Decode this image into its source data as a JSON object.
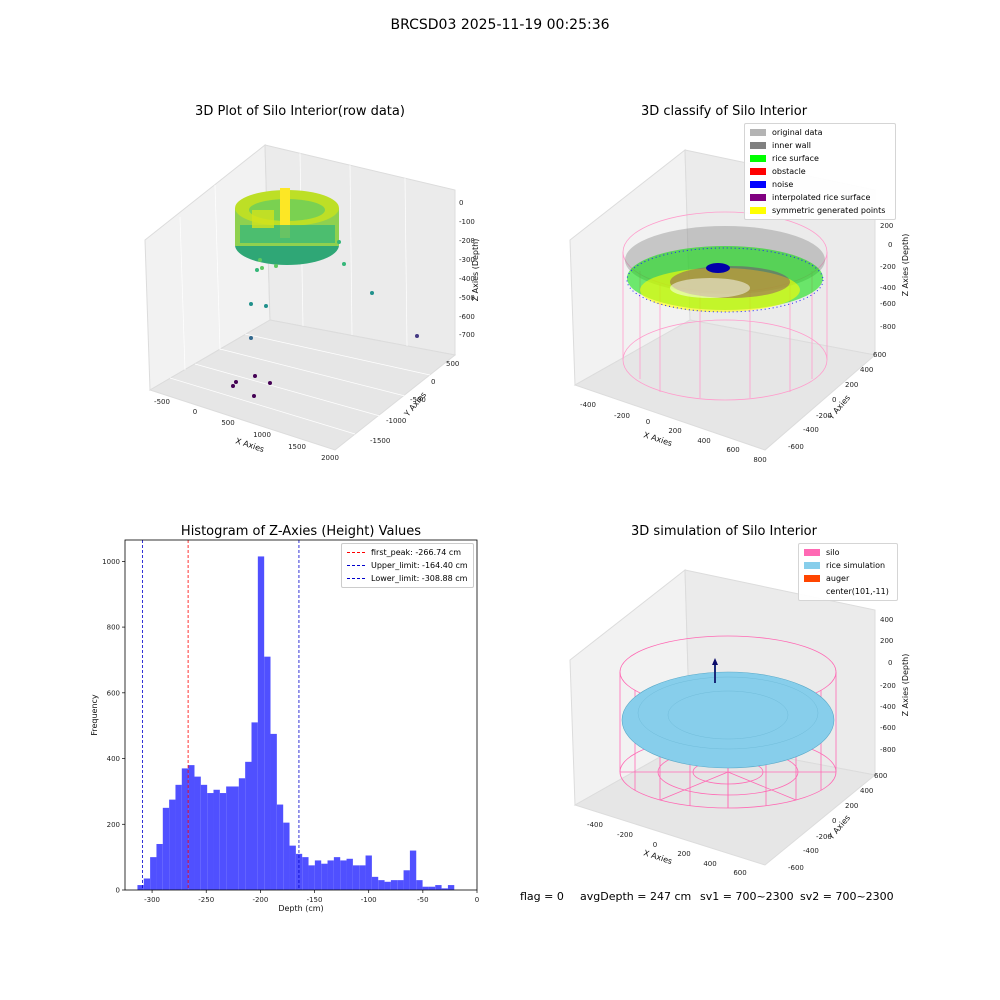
{
  "figure": {
    "suptitle": "BRCSD03 2025-11-19 00:25:36",
    "footer": {
      "flag": "flag = 0",
      "avg_depth": "avgDepth = 247 cm",
      "sv1": "sv1 = 700~2300",
      "sv2": "sv2 = 700~2300"
    }
  },
  "panels": {
    "raw": {
      "title": "3D Plot of Silo Interior(row data)",
      "xlabel": "X Axies",
      "ylabel": "Y Axies",
      "zlabel": "Z Axies (Depth)",
      "xticks": [
        "-500",
        "0",
        "500",
        "1000",
        "1500",
        "2000"
      ],
      "yticks": [
        "500",
        "0",
        "-500",
        "-1000",
        "-1500"
      ],
      "zticks": [
        "0",
        "-100",
        "-200",
        "-300",
        "-400",
        "-500",
        "-600",
        "-700"
      ],
      "colormap": [
        "#440154",
        "#31688e",
        "#35b779",
        "#fde725"
      ]
    },
    "classify": {
      "title": "3D classify of Silo Interior",
      "xlabel": "X Axies",
      "ylabel": "Y Axies",
      "zlabel": "Z Axies (Depth)",
      "xticks": [
        "-400",
        "-200",
        "0",
        "200",
        "400",
        "600",
        "800"
      ],
      "yticks": [
        "600",
        "400",
        "200",
        "0",
        "-200",
        "-400",
        "-600"
      ],
      "zticks": [
        "200",
        "0",
        "-200",
        "-400",
        "-600",
        "-800"
      ],
      "legend": [
        {
          "label": "original data",
          "color": "#b4b4b4"
        },
        {
          "label": "inner wall",
          "color": "#808080"
        },
        {
          "label": "rice surface",
          "color": "#00ff00"
        },
        {
          "label": "obstacle",
          "color": "#ff0000"
        },
        {
          "label": "noise",
          "color": "#0000ff"
        },
        {
          "label": "interpolated rice surface",
          "color": "#800080"
        },
        {
          "label": "symmetric generated points",
          "color": "#ffff00"
        }
      ]
    },
    "simulation": {
      "title": "3D simulation of Silo Interior",
      "xlabel": "X Axies",
      "ylabel": "Y Axies",
      "zlabel": "Z Axies (Depth)",
      "xticks": [
        "-400",
        "-200",
        "0",
        "200",
        "400",
        "600"
      ],
      "yticks": [
        "600",
        "400",
        "200",
        "0",
        "-200",
        "-400",
        "-600"
      ],
      "zticks": [
        "400",
        "200",
        "0",
        "-200",
        "-400",
        "-600",
        "-800"
      ],
      "legend": [
        {
          "label": "silo",
          "color": "#ff69b4"
        },
        {
          "label": "rice simulation",
          "color": "#87ceeb"
        },
        {
          "label": "auger",
          "color": "#ff4500"
        },
        {
          "label": "center(101,-11)",
          "color": ""
        }
      ]
    }
  },
  "chart_data": [
    {
      "type": "histogram",
      "title": "Histogram of Z-Axies (Height) Values",
      "xlabel": "Depth (cm)",
      "ylabel": "Frequency",
      "bar_color": "#5050ff",
      "xlim": [
        -325,
        0
      ],
      "ylim": [
        0,
        1065
      ],
      "xticks": [
        -300,
        -250,
        -200,
        -150,
        -100,
        -50,
        0
      ],
      "yticks": [
        0,
        200,
        400,
        600,
        800,
        1000
      ],
      "bin_start": -313.5,
      "bin_width": 5.85,
      "counts": [
        15,
        35,
        100,
        140,
        250,
        275,
        320,
        370,
        380,
        345,
        320,
        295,
        305,
        295,
        315,
        315,
        340,
        390,
        510,
        1015,
        710,
        475,
        260,
        205,
        135,
        110,
        100,
        75,
        90,
        80,
        90,
        100,
        90,
        95,
        75,
        75,
        105,
        40,
        30,
        25,
        30,
        30,
        60,
        120,
        30,
        10,
        10,
        15,
        5,
        15
      ],
      "lines": [
        {
          "label": "first_peak: -266.74 cm",
          "x": -266.74,
          "color": "#ff0000"
        },
        {
          "label": "Upper_limit: -164.40 cm",
          "x": -164.4,
          "color": "#0000cc"
        },
        {
          "label": "Lower_limit: -308.88 cm",
          "x": -308.88,
          "color": "#0000cc"
        }
      ]
    }
  ]
}
